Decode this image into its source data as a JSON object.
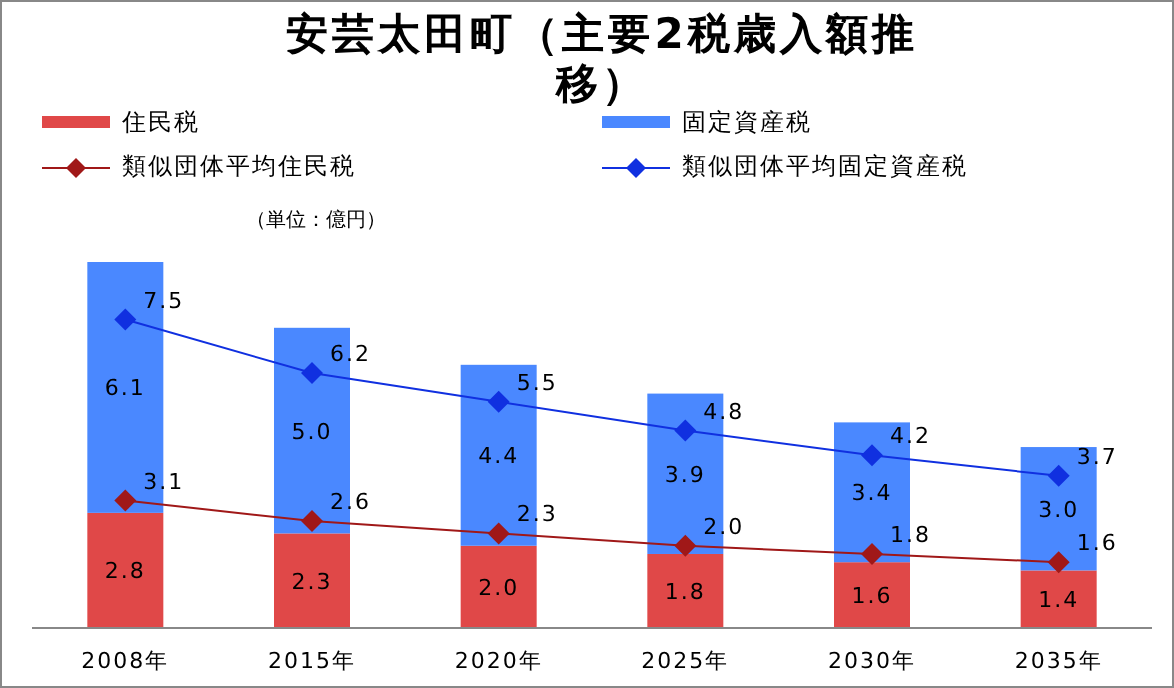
{
  "chart_data": {
    "type": "bar",
    "title": "安芸太田町（主要2税歳入額推移）",
    "categories": [
      "2008年",
      "2015年",
      "2020年",
      "2025年",
      "2030年",
      "2035年"
    ],
    "stacked": true,
    "legend": "top",
    "marker": "diamond",
    "annotations": [
      "（単位：億円）"
    ],
    "series": [
      {
        "name": "住民税",
        "color": "#e04848",
        "values": [
          2.8,
          2.3,
          2.0,
          1.8,
          1.6,
          1.4
        ],
        "value_labels": [
          "2.8",
          "2.3",
          "2.0",
          "1.8",
          "1.6",
          "1.4"
        ]
      },
      {
        "name": "固定資産税",
        "color": "#4a88ff",
        "values": [
          6.1,
          5.0,
          4.4,
          3.9,
          3.4,
          3.0
        ],
        "value_labels": [
          "6.1",
          "5.0",
          "4.4",
          "3.9",
          "3.4",
          "3.0"
        ]
      },
      {
        "name": "類似団体平均住民税",
        "type": "line",
        "color": "#a01818",
        "values": [
          3.1,
          2.6,
          2.3,
          2.0,
          1.8,
          1.6
        ],
        "value_labels": [
          "3.1",
          "2.6",
          "2.3",
          "2.0",
          "1.8",
          "1.6"
        ]
      },
      {
        "name": "類似団体平均固定資産税",
        "type": "line",
        "color": "#1030e0",
        "values": [
          7.5,
          6.2,
          5.5,
          4.8,
          4.2,
          3.7
        ],
        "value_labels": [
          "7.5",
          "6.2",
          "5.5",
          "4.8",
          "4.2",
          "3.7"
        ]
      }
    ]
  }
}
